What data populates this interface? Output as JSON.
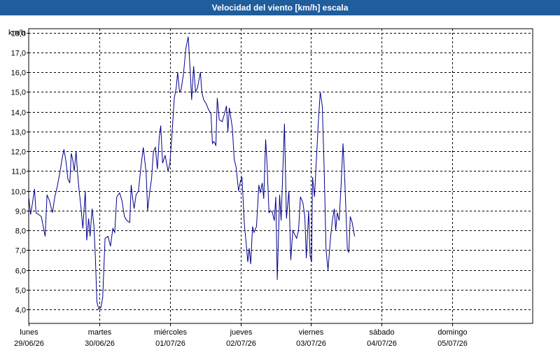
{
  "window": {
    "title": "Velocidad del viento [km/h] escala"
  },
  "chart_data": {
    "type": "line",
    "title": "Velocidad del viento [km/h] escala",
    "ylabel": "km/h",
    "ylim": [
      3.3,
      18.2
    ],
    "xlim": [
      0,
      7
    ],
    "yticks": [
      4,
      5,
      6,
      7,
      8,
      9,
      10,
      11,
      12,
      13,
      14,
      15,
      16,
      17,
      18
    ],
    "ytick_labels": [
      "4,0",
      "5,0",
      "6,0",
      "7,0",
      "8,0",
      "9,0",
      "10,0",
      "11,0",
      "12,0",
      "13,0",
      "14,0",
      "15,0",
      "16,0",
      "17,0",
      "18,0"
    ],
    "x_categories": [
      {
        "day": "lunes",
        "date": "29/06/26"
      },
      {
        "day": "martes",
        "date": "30/06/26"
      },
      {
        "day": "miércoles",
        "date": "01/07/26"
      },
      {
        "day": "jueves",
        "date": "02/07/26"
      },
      {
        "day": "viernes",
        "date": "03/07/26"
      },
      {
        "day": "sábado",
        "date": "04/07/26"
      },
      {
        "day": "domingo",
        "date": "05/07/26"
      }
    ],
    "grid": true,
    "line_color": "#00008b",
    "series": [
      {
        "points": [
          [
            0.0,
            9.7
          ],
          [
            0.027,
            8.8
          ],
          [
            0.055,
            9.4
          ],
          [
            0.082,
            10.1
          ],
          [
            0.103,
            8.9
          ],
          [
            0.144,
            8.8
          ],
          [
            0.178,
            8.7
          ],
          [
            0.233,
            7.7
          ],
          [
            0.26,
            9.8
          ],
          [
            0.294,
            9.5
          ],
          [
            0.336,
            8.9
          ],
          [
            0.37,
            9.7
          ],
          [
            0.404,
            10.2
          ],
          [
            0.445,
            11.0
          ],
          [
            0.472,
            11.6
          ],
          [
            0.5,
            12.1
          ],
          [
            0.527,
            11.5
          ],
          [
            0.555,
            10.6
          ],
          [
            0.582,
            10.4
          ],
          [
            0.603,
            11.9
          ],
          [
            0.623,
            11.6
          ],
          [
            0.644,
            11.0
          ],
          [
            0.671,
            12.0
          ],
          [
            0.692,
            10.9
          ],
          [
            0.712,
            10.1
          ],
          [
            0.74,
            9.2
          ],
          [
            0.767,
            8.1
          ],
          [
            0.801,
            10.0
          ],
          [
            0.822,
            7.5
          ],
          [
            0.849,
            8.6
          ],
          [
            0.87,
            7.7
          ],
          [
            0.897,
            9.1
          ],
          [
            0.925,
            8.2
          ],
          [
            0.945,
            6.6
          ],
          [
            0.966,
            4.4
          ],
          [
            0.993,
            4.0
          ],
          [
            1.021,
            4.1
          ],
          [
            1.048,
            4.6
          ],
          [
            1.082,
            7.6
          ],
          [
            1.123,
            7.7
          ],
          [
            1.158,
            7.2
          ],
          [
            1.192,
            8.1
          ],
          [
            1.219,
            7.9
          ],
          [
            1.247,
            9.7
          ],
          [
            1.288,
            9.9
          ],
          [
            1.322,
            9.5
          ],
          [
            1.356,
            8.7
          ],
          [
            1.39,
            8.5
          ],
          [
            1.432,
            8.4
          ],
          [
            1.452,
            10.3
          ],
          [
            1.473,
            9.6
          ],
          [
            1.493,
            9.1
          ],
          [
            1.521,
            9.8
          ],
          [
            1.555,
            10.0
          ],
          [
            1.589,
            11.2
          ],
          [
            1.623,
            12.2
          ],
          [
            1.664,
            10.9
          ],
          [
            1.685,
            9.0
          ],
          [
            1.712,
            9.9
          ],
          [
            1.74,
            10.6
          ],
          [
            1.767,
            12.0
          ],
          [
            1.795,
            12.2
          ],
          [
            1.822,
            11.1
          ],
          [
            1.849,
            12.7
          ],
          [
            1.87,
            13.3
          ],
          [
            1.897,
            11.4
          ],
          [
            1.932,
            11.8
          ],
          [
            1.973,
            11.0
          ],
          [
            2.0,
            11.4
          ],
          [
            2.027,
            12.7
          ],
          [
            2.062,
            14.7
          ],
          [
            2.089,
            15.2
          ],
          [
            2.11,
            16.0
          ],
          [
            2.137,
            15.0
          ],
          [
            2.158,
            15.1
          ],
          [
            2.192,
            15.9
          ],
          [
            2.226,
            17.2
          ],
          [
            2.26,
            17.8
          ],
          [
            2.288,
            16.0
          ],
          [
            2.308,
            14.6
          ],
          [
            2.336,
            16.3
          ],
          [
            2.363,
            15.0
          ],
          [
            2.39,
            15.2
          ],
          [
            2.432,
            16.0
          ],
          [
            2.452,
            15.0
          ],
          [
            2.479,
            14.6
          ],
          [
            2.514,
            14.4
          ],
          [
            2.548,
            14.1
          ],
          [
            2.582,
            13.9
          ],
          [
            2.603,
            12.4
          ],
          [
            2.623,
            12.5
          ],
          [
            2.651,
            12.3
          ],
          [
            2.671,
            14.7
          ],
          [
            2.699,
            13.6
          ],
          [
            2.74,
            13.5
          ],
          [
            2.774,
            13.9
          ],
          [
            2.801,
            14.3
          ],
          [
            2.822,
            13.0
          ],
          [
            2.842,
            14.2
          ],
          [
            2.884,
            13.2
          ],
          [
            2.911,
            11.6
          ],
          [
            2.938,
            11.2
          ],
          [
            2.973,
            10.0
          ],
          [
            3.0,
            10.5
          ],
          [
            3.021,
            10.7
          ],
          [
            3.055,
            8.3
          ],
          [
            3.082,
            7.3
          ],
          [
            3.103,
            6.4
          ],
          [
            3.123,
            7.1
          ],
          [
            3.144,
            6.3
          ],
          [
            3.171,
            8.2
          ],
          [
            3.192,
            7.9
          ],
          [
            3.226,
            8.2
          ],
          [
            3.26,
            10.3
          ],
          [
            3.281,
            9.9
          ],
          [
            3.308,
            10.4
          ],
          [
            3.329,
            9.6
          ],
          [
            3.356,
            12.6
          ],
          [
            3.377,
            11.3
          ],
          [
            3.404,
            8.9
          ],
          [
            3.425,
            9.0
          ],
          [
            3.452,
            8.9
          ],
          [
            3.479,
            8.5
          ],
          [
            3.5,
            9.7
          ],
          [
            3.521,
            5.5
          ],
          [
            3.555,
            9.8
          ],
          [
            3.575,
            8.5
          ],
          [
            3.603,
            11.4
          ],
          [
            3.623,
            13.4
          ],
          [
            3.651,
            8.6
          ],
          [
            3.685,
            10.0
          ],
          [
            3.712,
            6.5
          ],
          [
            3.74,
            8.0
          ],
          [
            3.767,
            7.8
          ],
          [
            3.795,
            7.6
          ],
          [
            3.822,
            8.0
          ],
          [
            3.849,
            9.7
          ],
          [
            3.884,
            9.4
          ],
          [
            3.911,
            8.7
          ],
          [
            3.932,
            6.6
          ],
          [
            3.966,
            9.0
          ],
          [
            3.986,
            6.7
          ],
          [
            4.007,
            6.4
          ],
          [
            4.021,
            10.7
          ],
          [
            4.048,
            9.7
          ],
          [
            4.075,
            11.6
          ],
          [
            4.103,
            13.5
          ],
          [
            4.13,
            15.0
          ],
          [
            4.158,
            14.3
          ],
          [
            4.185,
            11.1
          ],
          [
            4.212,
            7.0
          ],
          [
            4.24,
            6.0
          ],
          [
            4.274,
            7.6
          ],
          [
            4.301,
            8.5
          ],
          [
            4.329,
            9.1
          ],
          [
            4.349,
            8.0
          ],
          [
            4.37,
            8.9
          ],
          [
            4.397,
            8.5
          ],
          [
            4.425,
            10.3
          ],
          [
            4.452,
            12.4
          ],
          [
            4.479,
            10.4
          ],
          [
            4.514,
            7.0
          ],
          [
            4.534,
            6.9
          ],
          [
            4.555,
            8.7
          ],
          [
            4.582,
            8.4
          ],
          [
            4.616,
            7.7
          ]
        ]
      }
    ]
  }
}
